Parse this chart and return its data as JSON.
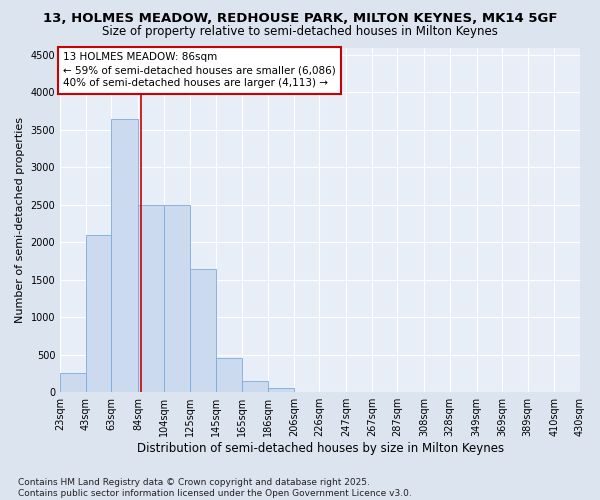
{
  "title_line1": "13, HOLMES MEADOW, REDHOUSE PARK, MILTON KEYNES, MK14 5GF",
  "title_line2": "Size of property relative to semi-detached houses in Milton Keynes",
  "xlabel": "Distribution of semi-detached houses by size in Milton Keynes",
  "ylabel": "Number of semi-detached properties",
  "footnote": "Contains HM Land Registry data © Crown copyright and database right 2025.\nContains public sector information licensed under the Open Government Licence v3.0.",
  "bins": [
    "23sqm",
    "43sqm",
    "63sqm",
    "84sqm",
    "104sqm",
    "125sqm",
    "145sqm",
    "165sqm",
    "186sqm",
    "206sqm",
    "226sqm",
    "247sqm",
    "267sqm",
    "287sqm",
    "308sqm",
    "328sqm",
    "349sqm",
    "369sqm",
    "389sqm",
    "410sqm",
    "430sqm"
  ],
  "bin_edges": [
    23,
    43,
    63,
    84,
    104,
    125,
    145,
    165,
    186,
    206,
    226,
    247,
    267,
    287,
    308,
    328,
    349,
    369,
    389,
    410,
    430
  ],
  "values": [
    250,
    2100,
    3650,
    2500,
    2500,
    1650,
    450,
    150,
    60,
    0,
    0,
    0,
    0,
    0,
    0,
    0,
    0,
    0,
    0,
    0
  ],
  "bar_color": "#ccdaf0",
  "bar_edge_color": "#7aabdb",
  "property_size": 86,
  "vline_color": "#cc0000",
  "annotation_text": "13 HOLMES MEADOW: 86sqm\n← 59% of semi-detached houses are smaller (6,086)\n40% of semi-detached houses are larger (4,113) →",
  "annotation_box_edge": "#cc0000",
  "ylim": [
    0,
    4600
  ],
  "yticks": [
    0,
    500,
    1000,
    1500,
    2000,
    2500,
    3000,
    3500,
    4000,
    4500
  ],
  "bg_color": "#dce4f0",
  "plot_bg_color": "#e8eef8",
  "grid_color": "#ffffff",
  "title_fontsize": 9.5,
  "subtitle_fontsize": 8.5,
  "ylabel_fontsize": 8,
  "xlabel_fontsize": 8.5,
  "tick_fontsize": 7,
  "annotation_fontsize": 7.5,
  "footnote_fontsize": 6.5
}
